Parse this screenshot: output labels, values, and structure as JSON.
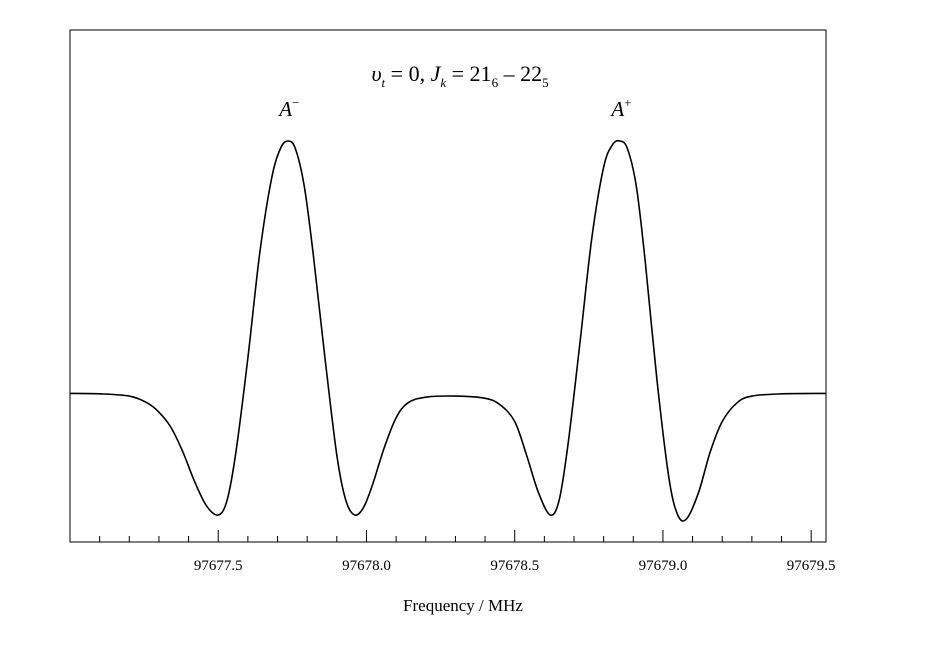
{
  "chart_data": {
    "type": "line",
    "title": {
      "v": "υ",
      "t_sub": "t",
      "eq1": " = 0, ",
      "J": "J",
      "k_sub": "k",
      "eq2": " = 21",
      "sub6": "6",
      "dash": " – 22",
      "sub5": "5"
    },
    "xlabel": "Frequency / MHz",
    "ylabel": "",
    "xlim": [
      97677.0,
      97679.55
    ],
    "ylim": [
      -0.08,
      1.07
    ],
    "x_ticks": [
      "97677.5",
      "97678.0",
      "97678.5",
      "97679.0",
      "97679.5"
    ],
    "x_tick_values": [
      97677.5,
      97678.0,
      97678.5,
      97679.0,
      97679.5
    ],
    "minor_tick_step": 0.1,
    "grid": false,
    "annotations": [
      {
        "base": "A",
        "sup": "−",
        "x": 97677.74
      },
      {
        "base": "A",
        "sup": "+",
        "x": 97678.86
      }
    ],
    "series": [
      {
        "x": [
          97677.0,
          97677.1,
          97677.2,
          97677.26,
          97677.3,
          97677.34,
          97677.38,
          97677.42,
          97677.46,
          97677.5,
          97677.53,
          97677.56,
          97677.6,
          97677.64,
          97677.68,
          97677.71,
          97677.735,
          97677.76,
          97677.79,
          97677.82,
          97677.86,
          97677.9,
          97677.93,
          97677.96,
          97677.99,
          97678.02,
          97678.06,
          97678.1,
          97678.14,
          97678.2,
          97678.3,
          97678.4,
          97678.45,
          97678.5,
          97678.54,
          97678.58,
          97678.62,
          97678.65,
          97678.68,
          97678.72,
          97678.76,
          97678.8,
          97678.83,
          97678.855,
          97678.88,
          97678.91,
          97678.94,
          97678.98,
          97679.02,
          97679.05,
          97679.08,
          97679.12,
          97679.16,
          97679.2,
          97679.25,
          97679.3,
          97679.4,
          97679.55
        ],
        "y": [
          0.325,
          0.324,
          0.318,
          0.3,
          0.275,
          0.235,
          0.17,
          0.09,
          0.025,
          0.0,
          0.04,
          0.17,
          0.42,
          0.7,
          0.9,
          0.98,
          1.0,
          0.98,
          0.88,
          0.7,
          0.42,
          0.16,
          0.04,
          0.0,
          0.02,
          0.08,
          0.18,
          0.26,
          0.3,
          0.315,
          0.318,
          0.312,
          0.295,
          0.25,
          0.16,
          0.06,
          0.0,
          0.04,
          0.19,
          0.46,
          0.74,
          0.93,
          0.99,
          1.0,
          0.98,
          0.88,
          0.68,
          0.36,
          0.1,
          0.0,
          -0.01,
          0.06,
          0.17,
          0.25,
          0.3,
          0.318,
          0.324,
          0.325
        ]
      }
    ]
  }
}
